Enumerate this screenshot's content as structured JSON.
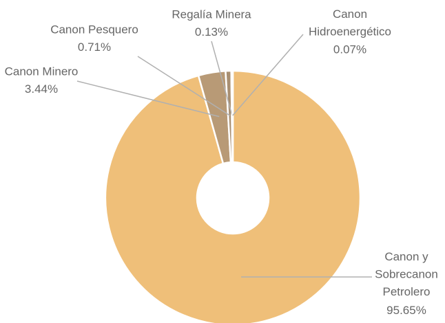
{
  "chart_data": {
    "type": "donut",
    "categories": [
      "Canon y Sobrecanon Petrolero",
      "Canon Minero",
      "Canon Pesquero",
      "Regalía Minera",
      "Canon Hidroenergético"
    ],
    "values": [
      95.65,
      3.44,
      0.71,
      0.13,
      0.07
    ],
    "value_labels": [
      "95.65%",
      "3.44%",
      "0.71%",
      "0.13%",
      "0.07%"
    ],
    "colors": [
      "#efbf79",
      "#b89a76",
      "#a88f72",
      "#c9ab8e",
      "#e9c6bc"
    ]
  }
}
